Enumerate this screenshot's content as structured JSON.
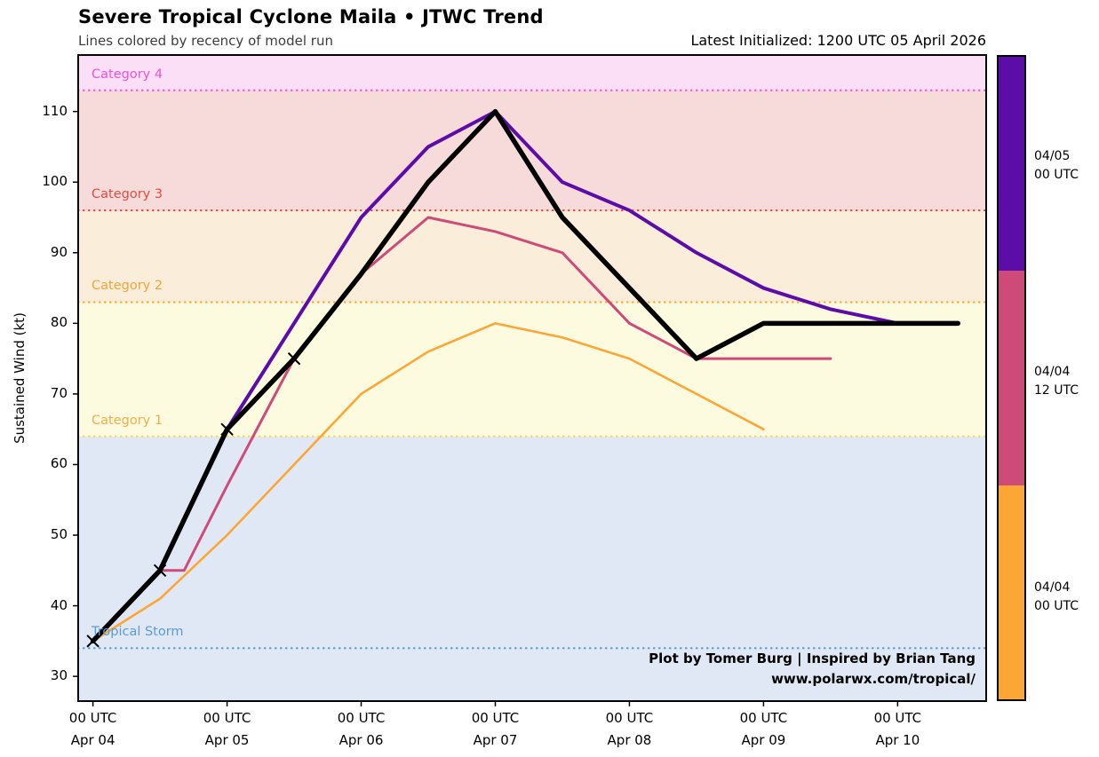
{
  "chart_data": {
    "type": "line",
    "title": "Severe Tropical Cyclone Maila • JTWC Trend",
    "subtitle": "Lines colored by recency of model run",
    "latest_initialized": "Latest Initialized: 1200 UTC 05 April 2026",
    "ylabel": "Sustained Wind (kt)",
    "x_axis_note": "x in days since 00 UTC Apr 04, 0.5 = 12 h",
    "x_range": [
      -0.11,
      6.66
    ],
    "y_range": [
      26.5,
      118
    ],
    "grid": false,
    "y_ticks": [
      30,
      40,
      50,
      60,
      70,
      80,
      90,
      100,
      110
    ],
    "x_ticks": [
      {
        "x": 0,
        "utc": "00 UTC",
        "date": "Apr 04"
      },
      {
        "x": 1,
        "utc": "00 UTC",
        "date": "Apr 05"
      },
      {
        "x": 2,
        "utc": "00 UTC",
        "date": "Apr 06"
      },
      {
        "x": 3,
        "utc": "00 UTC",
        "date": "Apr 07"
      },
      {
        "x": 4,
        "utc": "00 UTC",
        "date": "Apr 08"
      },
      {
        "x": 5,
        "utc": "00 UTC",
        "date": "Apr 09"
      },
      {
        "x": 6,
        "utc": "00 UTC",
        "date": "Apr 10"
      }
    ],
    "category_bands": [
      {
        "id": "tropical-storm",
        "label": "Tropical Storm",
        "threshold": 34,
        "band_from": 26.5,
        "band_to": 64,
        "band_color": "#dfe8f4",
        "line_color": "#5b9bd5",
        "label_color": "#5b9bd5"
      },
      {
        "id": "category-1",
        "label": "Category 1",
        "threshold": 64,
        "band_from": 64,
        "band_to": 83,
        "band_color": "#fcfbdf",
        "line_color": "#ffd84d",
        "label_color": "#f4ad4a"
      },
      {
        "id": "category-2",
        "label": "Category 2",
        "threshold": 83,
        "band_from": 83,
        "band_to": 96,
        "band_color": "#faeeda",
        "line_color": "#ffa53c",
        "label_color": "#f2a43c"
      },
      {
        "id": "category-3",
        "label": "Category 3",
        "threshold": 96,
        "band_from": 96,
        "band_to": 113,
        "band_color": "#f7dbda",
        "line_color": "#f04438",
        "label_color": "#e04c44"
      },
      {
        "id": "category-4",
        "label": "Category 4",
        "threshold": 113,
        "band_from": 113,
        "band_to": 118,
        "band_color": "#fbdff6",
        "line_color": "#fb55dd",
        "label_color": "#ee55d4"
      }
    ],
    "series": [
      {
        "id": "run-0404-00utc",
        "label": "04/04 00 UTC",
        "color": "#fca636",
        "width": 2.6,
        "x": [
          0,
          0.5,
          1,
          1.5,
          2,
          2.5,
          3,
          3.5,
          4,
          4.5,
          5
        ],
        "values": [
          35,
          41,
          50,
          60,
          70,
          76,
          80,
          78,
          75,
          70,
          65
        ]
      },
      {
        "id": "run-0404-12utc",
        "label": "04/04 12 UTC",
        "color": "#ce4a78",
        "width": 3,
        "x": [
          0.5,
          0.68,
          1,
          1.5,
          2,
          2.5,
          3,
          3.5,
          4,
          4.5,
          5,
          5.5
        ],
        "values": [
          45,
          45,
          57,
          75,
          87,
          95,
          93,
          90,
          80,
          75,
          75,
          75
        ]
      },
      {
        "id": "run-0405-00utc",
        "label": "04/05 00 UTC",
        "color": "#5c0da8",
        "width": 4,
        "x": [
          1,
          1.5,
          2,
          2.5,
          3,
          3.5,
          4,
          4.5,
          5,
          5.5,
          6,
          6.45
        ],
        "values": [
          65,
          80,
          95,
          105,
          110,
          100,
          96,
          90,
          85,
          82,
          80,
          80
        ]
      },
      {
        "id": "observed-black",
        "color": "#000000",
        "width": 5.5,
        "marker": "x",
        "marker_points": [
          0,
          1,
          2,
          3
        ],
        "x": [
          0,
          0.5,
          1,
          1.5,
          2,
          2.5,
          3,
          3.5,
          4,
          4.5,
          5,
          5.5,
          6,
          6.45
        ],
        "values": [
          35,
          45,
          65,
          75,
          87,
          100,
          110,
          95,
          85,
          75,
          80,
          80,
          80,
          80
        ]
      }
    ],
    "colorbar": {
      "segments": [
        {
          "id": "run-0405-00utc",
          "color": "#5c0da8",
          "label": [
            "04/05",
            "00 UTC"
          ]
        },
        {
          "id": "run-0404-12utc",
          "color": "#ce4a78",
          "label": [
            "04/04",
            "12 UTC"
          ]
        },
        {
          "id": "run-0404-00utc",
          "color": "#fca636",
          "label": [
            "04/04",
            "00 UTC"
          ]
        }
      ]
    },
    "attribution": [
      "Plot by Tomer Burg | Inspired by Brian Tang",
      "www.polarwx.com/tropical/"
    ]
  }
}
